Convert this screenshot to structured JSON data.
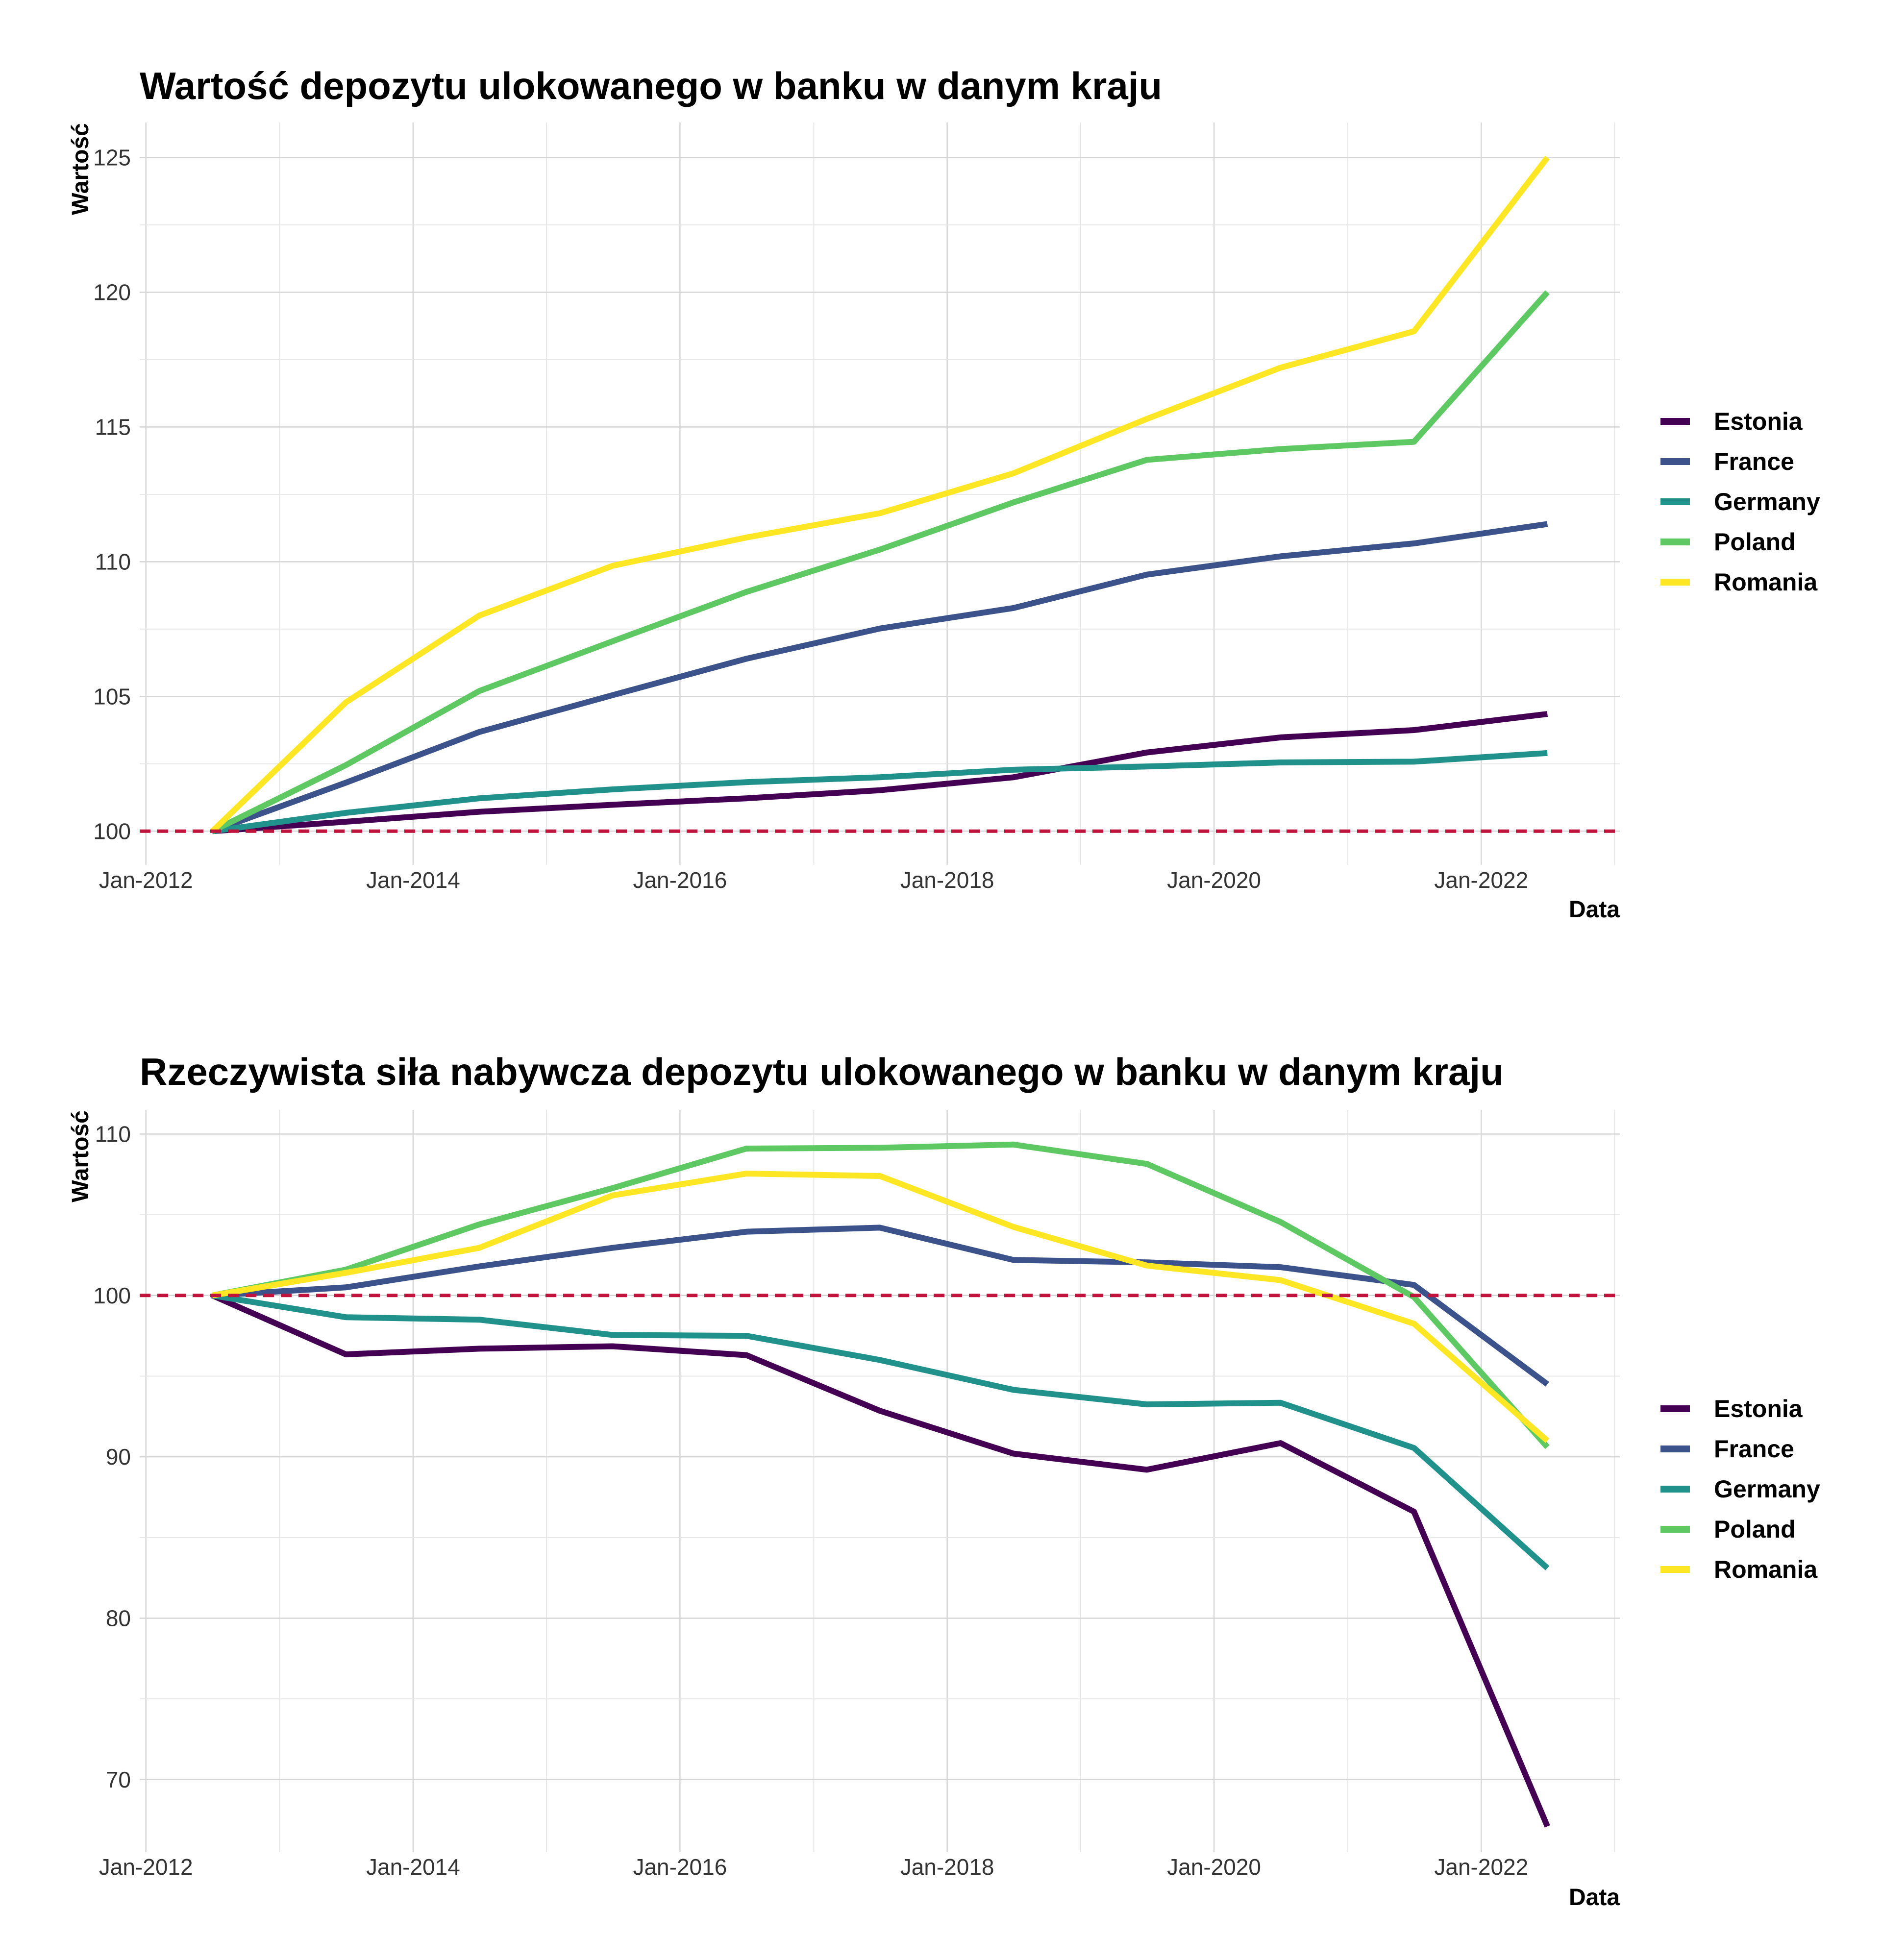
{
  "chart_data": [
    {
      "type": "line",
      "title": "Wartość depozytu ulokowanego w banku w danym kraju",
      "xlabel": "Data",
      "ylabel": "Wartość",
      "x": [
        "2012-07-01",
        "2013-07-01",
        "2014-07-01",
        "2015-07-01",
        "2016-07-01",
        "2017-07-01",
        "2018-07-01",
        "2019-07-01",
        "2020-07-01",
        "2021-07-01",
        "2022-07-01"
      ],
      "xlim": [
        "2011-12-15",
        "2023-01-15"
      ],
      "x_ticks": [
        "Jan-2012",
        "Jan-2014",
        "Jan-2016",
        "Jan-2018",
        "Jan-2020",
        "Jan-2022"
      ],
      "ylim": [
        98.75,
        126.3
      ],
      "y_ticks": [
        100,
        105,
        110,
        115,
        120,
        125
      ],
      "reference_line": 100,
      "legend_position": "right",
      "grid": true,
      "series": [
        {
          "name": "Estonia",
          "color": "#440154",
          "values": [
            100,
            100.35,
            100.72,
            100.98,
            101.22,
            101.52,
            102.0,
            102.92,
            103.48,
            103.75,
            104.35
          ]
        },
        {
          "name": "France",
          "color": "#3b528b",
          "values": [
            100,
            101.8,
            103.68,
            105.05,
            106.4,
            107.52,
            108.28,
            109.52,
            110.2,
            110.68,
            111.4
          ]
        },
        {
          "name": "Germany",
          "color": "#21918c",
          "values": [
            100,
            100.68,
            101.22,
            101.55,
            101.82,
            102.0,
            102.28,
            102.4,
            102.55,
            102.58,
            102.9
          ]
        },
        {
          "name": "Poland",
          "color": "#5ec962",
          "values": [
            100,
            102.45,
            105.2,
            107.05,
            108.88,
            110.45,
            112.2,
            113.78,
            114.18,
            114.45,
            120.0
          ]
        },
        {
          "name": "Romania",
          "color": "#fde725",
          "values": [
            100,
            104.78,
            108.0,
            109.85,
            110.9,
            111.8,
            113.28,
            115.3,
            117.2,
            118.55,
            125.0
          ]
        }
      ]
    },
    {
      "type": "line",
      "title": "Rzeczywista siła nabywcza depozytu ulokowanego w banku w danym kraju",
      "xlabel": "Data",
      "ylabel": "Wartość",
      "x": [
        "2012-07-01",
        "2013-07-01",
        "2014-07-01",
        "2015-07-01",
        "2016-07-01",
        "2017-07-01",
        "2018-07-01",
        "2019-07-01",
        "2020-07-01",
        "2021-07-01",
        "2022-07-01"
      ],
      "xlim": [
        "2011-12-15",
        "2023-01-15"
      ],
      "x_ticks": [
        "Jan-2012",
        "Jan-2014",
        "Jan-2016",
        "Jan-2018",
        "Jan-2020",
        "Jan-2022"
      ],
      "ylim": [
        65.5,
        111.5
      ],
      "y_ticks": [
        70,
        80,
        90,
        100,
        110
      ],
      "reference_line": 100,
      "legend_position": "right",
      "grid": true,
      "series": [
        {
          "name": "Estonia",
          "color": "#440154",
          "values": [
            100,
            96.35,
            96.7,
            96.85,
            96.3,
            92.85,
            90.2,
            89.2,
            90.85,
            86.6,
            67.1
          ]
        },
        {
          "name": "France",
          "color": "#3b528b",
          "values": [
            100,
            100.5,
            101.8,
            102.95,
            103.95,
            104.2,
            102.2,
            102.05,
            101.75,
            100.65,
            94.5
          ]
        },
        {
          "name": "Germany",
          "color": "#21918c",
          "values": [
            100,
            98.65,
            98.5,
            97.55,
            97.5,
            96.0,
            94.15,
            93.25,
            93.35,
            90.55,
            83.1
          ]
        },
        {
          "name": "Poland",
          "color": "#5ec962",
          "values": [
            100,
            101.6,
            104.4,
            106.65,
            109.1,
            109.15,
            109.35,
            108.15,
            104.55,
            99.9,
            90.6
          ]
        },
        {
          "name": "Romania",
          "color": "#fde725",
          "values": [
            100,
            101.4,
            102.95,
            106.2,
            107.55,
            107.4,
            104.25,
            101.85,
            100.95,
            98.25,
            91.0
          ]
        }
      ]
    }
  ]
}
